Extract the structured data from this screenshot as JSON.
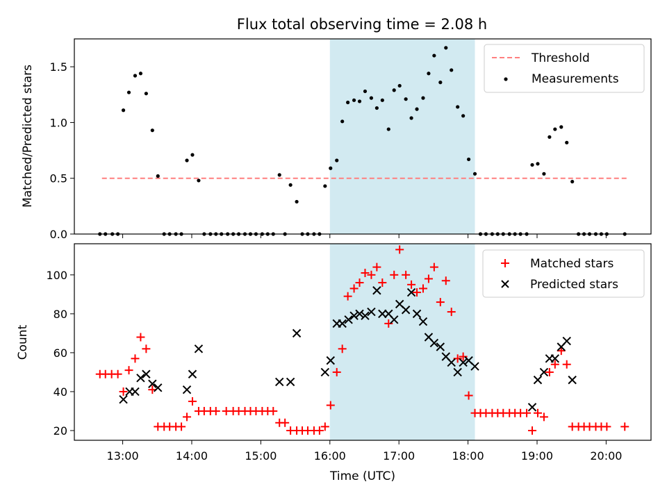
{
  "chart_data": {
    "type": "scatter",
    "title": "Flux total observing time = 2.08 h",
    "xlabel": "Time (UTC)",
    "x_ticks": [
      "13:00",
      "14:00",
      "15:00",
      "16:00",
      "17:00",
      "18:00",
      "19:00",
      "20:00"
    ],
    "xlim_hours": [
      12.3,
      20.65
    ],
    "highlight_span_hours": [
      16.0,
      18.1
    ],
    "highlight_color": "#add8e6",
    "panels": [
      {
        "ylabel": "Matched/Predicted stars",
        "ylim": [
          0,
          1.75
        ],
        "y_ticks": [
          "0.0",
          "0.5",
          "1.0",
          "1.5"
        ],
        "y_tick_values": [
          0,
          0.5,
          1.0,
          1.5
        ],
        "legend": "top-right",
        "series": [
          {
            "name": "Threshold",
            "kind": "line",
            "style": "dashed",
            "color": "#ff7f7f",
            "x": [
              12.7,
              20.3
            ],
            "y": [
              0.5,
              0.5
            ]
          },
          {
            "name": "Measurements",
            "kind": "dot",
            "color": "#000000",
            "x": [
              12.67,
              12.75,
              12.85,
              12.93,
              13.01,
              13.09,
              13.18,
              13.26,
              13.34,
              13.43,
              13.51,
              13.6,
              13.68,
              13.77,
              13.85,
              13.93,
              14.01,
              14.1,
              14.18,
              14.27,
              14.35,
              14.43,
              14.52,
              14.6,
              14.68,
              14.77,
              14.85,
              14.93,
              15.02,
              15.1,
              15.18,
              15.27,
              15.35,
              15.43,
              15.52,
              15.6,
              15.68,
              15.77,
              15.85,
              15.93,
              16.01,
              16.1,
              16.18,
              16.26,
              16.35,
              16.43,
              16.51,
              16.6,
              16.68,
              16.76,
              16.85,
              16.93,
              17.01,
              17.1,
              17.18,
              17.26,
              17.35,
              17.43,
              17.51,
              17.6,
              17.68,
              17.76,
              17.85,
              17.93,
              18.01,
              18.1,
              18.18,
              18.26,
              18.35,
              18.43,
              18.51,
              18.6,
              18.68,
              18.76,
              18.85,
              18.93,
              19.01,
              19.1,
              19.18,
              19.26,
              19.35,
              19.43,
              19.51,
              19.6,
              19.68,
              19.76,
              19.85,
              19.93,
              20.01,
              20.27
            ],
            "y": [
              0,
              0,
              0,
              0,
              1.11,
              1.27,
              1.42,
              1.44,
              1.26,
              0.93,
              0.52,
              0,
              0,
              0,
              0,
              0.66,
              0.71,
              0.48,
              0,
              0,
              0,
              0,
              0,
              0,
              0,
              0,
              0,
              0,
              0,
              0,
              0,
              0.53,
              0,
              0.44,
              0.29,
              0,
              0,
              0,
              0,
              0.43,
              0.59,
              0.66,
              1.01,
              1.18,
              1.2,
              1.19,
              1.28,
              1.22,
              1.13,
              1.2,
              0.94,
              1.29,
              1.33,
              1.21,
              1.04,
              1.12,
              1.22,
              1.44,
              1.6,
              1.36,
              1.67,
              1.47,
              1.14,
              1.06,
              0.67,
              0.54,
              0,
              0,
              0,
              0,
              0,
              0,
              0,
              0,
              0,
              0.62,
              0.63,
              0.54,
              0.87,
              0.94,
              0.96,
              0.82,
              0.47,
              0,
              0,
              0,
              0,
              0,
              0,
              0
            ]
          }
        ]
      },
      {
        "ylabel": "Count",
        "ylim": [
          15,
          116
        ],
        "y_ticks": [
          "20",
          "40",
          "60",
          "80",
          "100"
        ],
        "y_tick_values": [
          20,
          40,
          60,
          80,
          100
        ],
        "legend": "top-right",
        "series": [
          {
            "name": "Matched stars",
            "kind": "plus",
            "color": "#ff0000",
            "x": [
              12.67,
              12.75,
              12.84,
              12.93,
              13.01,
              13.09,
              13.18,
              13.26,
              13.34,
              13.43,
              13.51,
              13.6,
              13.68,
              13.77,
              13.85,
              13.93,
              14.01,
              14.1,
              14.18,
              14.27,
              14.35,
              14.5,
              14.6,
              14.68,
              14.77,
              14.85,
              14.93,
              15.02,
              15.1,
              15.18,
              15.27,
              15.35,
              15.43,
              15.52,
              15.6,
              15.68,
              15.77,
              15.85,
              15.93,
              16.01,
              16.1,
              16.18,
              16.26,
              16.35,
              16.43,
              16.51,
              16.6,
              16.68,
              16.76,
              16.85,
              16.93,
              17.01,
              17.1,
              17.18,
              17.26,
              17.35,
              17.43,
              17.51,
              17.6,
              17.68,
              17.76,
              17.85,
              17.93,
              18.01,
              18.1,
              18.18,
              18.26,
              18.35,
              18.43,
              18.51,
              18.6,
              18.68,
              18.76,
              18.85,
              18.93,
              19.01,
              19.1,
              19.18,
              19.26,
              19.35,
              19.43,
              19.51,
              19.6,
              19.68,
              19.76,
              19.85,
              19.93,
              20.01,
              20.27
            ],
            "y": [
              49,
              49,
              49,
              49,
              40,
              51,
              57,
              68,
              62,
              41,
              22,
              22,
              22,
              22,
              22,
              27,
              35,
              30,
              30,
              30,
              30,
              30,
              30,
              30,
              30,
              30,
              30,
              30,
              30,
              30,
              24,
              24,
              20,
              20,
              20,
              20,
              20,
              20,
              22,
              33,
              50,
              62,
              89,
              93,
              96,
              101,
              100,
              104,
              96,
              75,
              100,
              113,
              100,
              95,
              91,
              93,
              98,
              104,
              86,
              97,
              81,
              57,
              58,
              38,
              29,
              29,
              29,
              29,
              29,
              29,
              29,
              29,
              29,
              29,
              20,
              29,
              27,
              50,
              54,
              61,
              54,
              22,
              22,
              22,
              22,
              22,
              22,
              22,
              22
            ]
          },
          {
            "name": "Predicted stars",
            "kind": "x",
            "color": "#000000",
            "x": [
              13.01,
              13.1,
              13.18,
              13.26,
              13.34,
              13.43,
              13.51,
              13.93,
              14.01,
              14.1,
              15.27,
              15.43,
              15.52,
              15.93,
              16.01,
              16.1,
              16.18,
              16.27,
              16.35,
              16.43,
              16.51,
              16.6,
              16.68,
              16.76,
              16.85,
              16.93,
              17.01,
              17.1,
              17.18,
              17.26,
              17.35,
              17.43,
              17.51,
              17.6,
              17.68,
              17.76,
              17.85,
              17.93,
              18.01,
              18.1,
              18.93,
              19.01,
              19.1,
              19.18,
              19.26,
              19.35,
              19.43,
              19.51
            ],
            "y": [
              36,
              40,
              40,
              47,
              49,
              44,
              42,
              41,
              49,
              62,
              45,
              45,
              70,
              50,
              56,
              75,
              75,
              77,
              79,
              80,
              79,
              81,
              92,
              80,
              80,
              77,
              85,
              82,
              91,
              80,
              76,
              68,
              65,
              63,
              58,
              55,
              50,
              55,
              56,
              53,
              32,
              46,
              50,
              57,
              57,
              63,
              66,
              46
            ]
          }
        ]
      }
    ]
  }
}
